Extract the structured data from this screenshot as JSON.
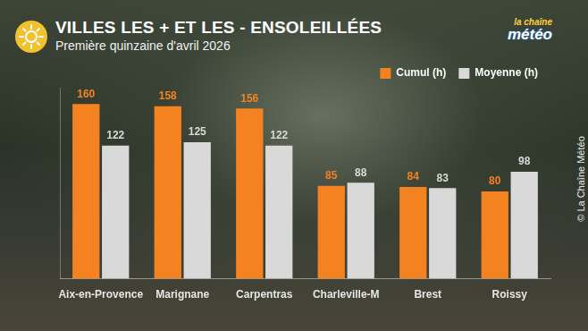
{
  "chart_data": {
    "type": "bar",
    "title": "VILLES LES + ET LES - ENSOLEILLÉES",
    "subtitle": "Première quinzaine d'avril 2026",
    "logo": [
      "la chaîne",
      "météo"
    ],
    "credit": "© La Chaîne Météo",
    "categories": [
      "Aix-en-Provence",
      "Marignane",
      "Carpentras",
      "Charleville-M",
      "Brest",
      "Roissy"
    ],
    "series": [
      {
        "name": "Cumul (h)",
        "color": "#f58220",
        "values": [
          160,
          158,
          156,
          85,
          84,
          80
        ]
      },
      {
        "name": "Moyenne (h)",
        "color": "#d9d9d9",
        "values": [
          122,
          125,
          122,
          88,
          83,
          98
        ]
      }
    ],
    "ylim": [
      0,
      175
    ],
    "grid": false,
    "legend": "top-right",
    "data_labels": true,
    "tick_labels": "x"
  }
}
